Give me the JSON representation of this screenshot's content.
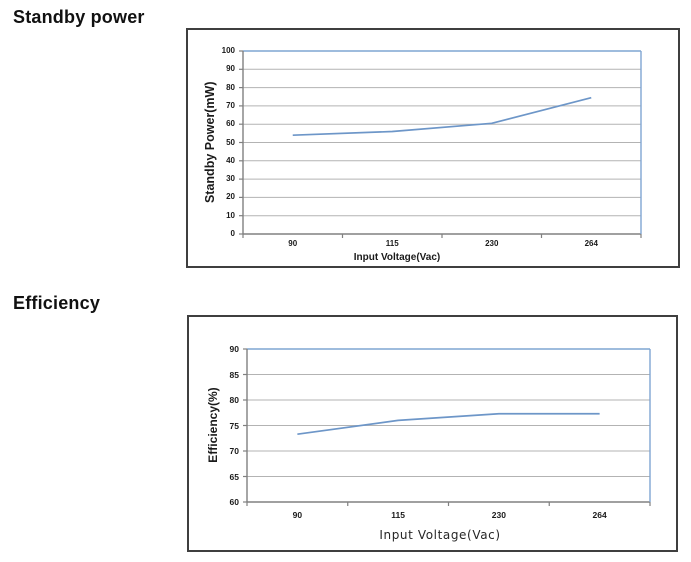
{
  "page": {
    "section1_title": "Standby power",
    "section2_title": "Efficiency"
  },
  "colors": {
    "frame_border": "#3f3f3f",
    "axis": "#808080",
    "gridline": "#b3b3b3",
    "plot_border": "#7fa5d2",
    "series_line": "#6d96c8",
    "text": "#1a1a1a"
  },
  "chart_data": [
    {
      "type": "line",
      "title": "Standby power",
      "categories": [
        "90",
        "115",
        "230",
        "264"
      ],
      "values": [
        54,
        56,
        60.5,
        74.5
      ],
      "xlabel": "Input Voltage(Vac)",
      "ylabel": "Standby Power(mW)",
      "ylim": [
        0,
        100
      ],
      "yticks": [
        0,
        10,
        20,
        30,
        40,
        50,
        60,
        70,
        80,
        90,
        100
      ],
      "grid": true,
      "legend": "none",
      "line_color": "#6d96c8"
    },
    {
      "type": "line",
      "title": "Efficiency",
      "categories": [
        "90",
        "115",
        "230",
        "264"
      ],
      "values": [
        73.3,
        76,
        77.3,
        77.3
      ],
      "xlabel": "Input Voltage(Vac)",
      "ylabel": "Efficiency(%)",
      "ylim": [
        60,
        90
      ],
      "yticks": [
        60,
        65,
        70,
        75,
        80,
        85,
        90
      ],
      "grid": true,
      "legend": "none",
      "line_color": "#6d96c8"
    }
  ]
}
